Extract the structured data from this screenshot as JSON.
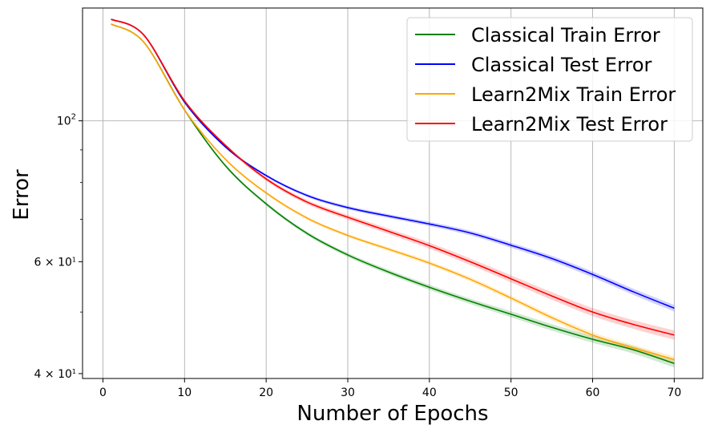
{
  "chart_data": {
    "type": "line",
    "xlabel": "Number of Epochs",
    "ylabel": "Error",
    "yscale": "log",
    "xlim": [
      -2.5,
      73.5
    ],
    "ylim": [
      39.3,
      150.5
    ],
    "grid": true,
    "legend_position": "top-right",
    "x_ticks": [
      0,
      10,
      20,
      30,
      40,
      50,
      60,
      70
    ],
    "x_tick_labels": [
      "0",
      "10",
      "20",
      "30",
      "40",
      "50",
      "60",
      "70"
    ],
    "y_major_ticks": [
      40,
      60,
      100
    ],
    "y_tick_labels": [
      {
        "value": 100,
        "base": "10",
        "exp": "2"
      },
      {
        "value": 60,
        "base": "6 × 10",
        "exp": "1"
      },
      {
        "value": 40,
        "base": "4 × 10",
        "exp": "1"
      }
    ],
    "y_minor_ticks": [
      50,
      70,
      80,
      90
    ],
    "x": [
      1,
      5,
      10,
      15,
      20,
      25,
      30,
      35,
      40,
      45,
      50,
      55,
      60,
      65,
      70
    ],
    "series": [
      {
        "name": "Classical Train Error",
        "color": "#008000",
        "values": [
          142.0,
          133.0,
          104.0,
          85.0,
          74.0,
          66.5,
          61.5,
          57.8,
          54.7,
          52.0,
          49.6,
          47.3,
          45.3,
          43.6,
          41.5
        ],
        "band": 0.012
      },
      {
        "name": "Classical Test Error",
        "color": "#0000ff",
        "values": [
          144.5,
          136.5,
          107.0,
          91.0,
          82.0,
          76.3,
          73.0,
          70.8,
          68.8,
          66.6,
          63.7,
          60.7,
          57.3,
          53.8,
          50.7
        ],
        "band": 0.01
      },
      {
        "name": "Learn2Mix Train Error",
        "color": "#ffa500",
        "values": [
          142.0,
          133.0,
          104.0,
          87.0,
          77.0,
          70.3,
          66.0,
          62.8,
          59.7,
          56.3,
          52.6,
          49.0,
          46.0,
          43.9,
          42.1
        ],
        "band": 0.01
      },
      {
        "name": "Learn2Mix Test Error",
        "color": "#ff0000",
        "values": [
          144.5,
          136.5,
          107.5,
          91.5,
          81.0,
          74.5,
          70.5,
          67.0,
          63.6,
          60.0,
          56.4,
          53.0,
          50.0,
          47.8,
          46.0
        ],
        "band": 0.014
      }
    ]
  }
}
